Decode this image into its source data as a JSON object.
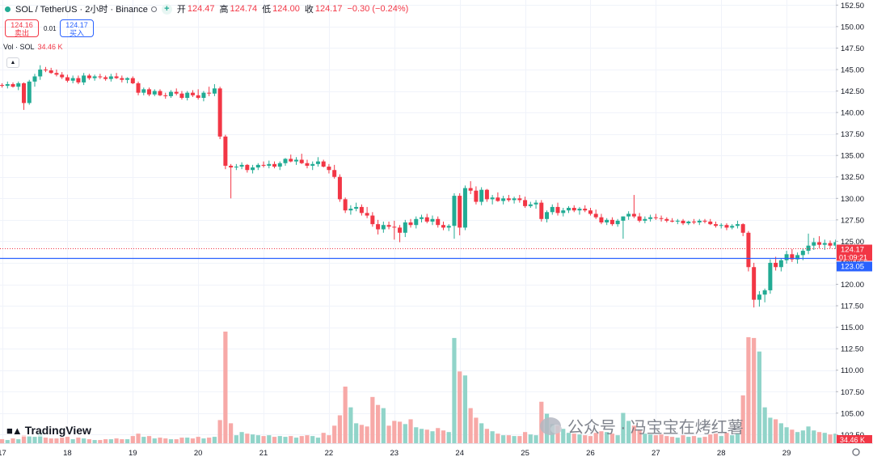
{
  "header": {
    "symbol": "SOL / TetherUS · 2小时 · Binance",
    "open_label": "开",
    "open": "124.47",
    "high_label": "高",
    "high": "124.74",
    "low_label": "低",
    "low": "124.00",
    "close_label": "收",
    "close": "124.17",
    "change": "−0.30 (−0.24%)"
  },
  "trade": {
    "sell_price": "124.16",
    "sell_label": "卖出",
    "spread": "0.01",
    "buy_price": "124.17",
    "buy_label": "买入"
  },
  "volume_legend": {
    "label": "Vol · SOL",
    "value": "34.46 K"
  },
  "logo_text": "TradingView",
  "watermark": "公众号 · 冯宝宝在烤红薯",
  "colors": {
    "up": "#22ab94",
    "down": "#f23645",
    "up_vol": "#91d4c9",
    "down_vol": "#f7a9a7",
    "line": "#2962ff"
  },
  "chart_data": {
    "type": "candlestick",
    "pair": "SOL / TetherUS",
    "timeframe": "2小时",
    "price_axis": {
      "ticks": [
        "152.50",
        "150.00",
        "147.50",
        "145.00",
        "142.50",
        "140.00",
        "137.50",
        "135.00",
        "132.50",
        "130.00",
        "127.50",
        "125.00",
        "122.50",
        "120.00",
        "117.50",
        "115.00",
        "112.50",
        "110.00",
        "107.50",
        "105.00",
        "102.50"
      ],
      "range": [
        101.5,
        153.0
      ]
    },
    "date_axis": {
      "ticks": [
        "17",
        "18",
        "19",
        "20",
        "21",
        "22",
        "23",
        "24",
        "25",
        "26",
        "27",
        "28",
        "29"
      ],
      "bars_per_day": 12
    },
    "current_price": {
      "value": "124.17",
      "countdown": "01:09:21"
    },
    "horizontal_line": {
      "value": "123.05"
    },
    "volume_last": "34.46 K",
    "candles": [
      [
        143.2,
        143.4,
        142.9,
        143.1,
        5
      ],
      [
        143.1,
        143.6,
        142.8,
        143.3,
        4
      ],
      [
        143.3,
        143.5,
        142.9,
        143.0,
        6
      ],
      [
        143.0,
        143.6,
        142.6,
        143.4,
        5
      ],
      [
        143.4,
        143.5,
        140.3,
        141.1,
        10
      ],
      [
        141.1,
        143.8,
        140.9,
        143.6,
        9
      ],
      [
        143.6,
        144.5,
        143.0,
        144.2,
        8
      ],
      [
        144.2,
        145.5,
        143.8,
        145.0,
        14
      ],
      [
        145.0,
        145.3,
        144.7,
        144.9,
        7
      ],
      [
        144.9,
        145.2,
        144.5,
        144.6,
        6
      ],
      [
        144.6,
        145.0,
        144.2,
        144.4,
        6
      ],
      [
        144.4,
        144.7,
        143.9,
        144.1,
        7
      ],
      [
        144.1,
        144.4,
        143.5,
        143.7,
        8
      ],
      [
        143.7,
        144.3,
        143.4,
        144.0,
        5
      ],
      [
        144.0,
        144.3,
        143.3,
        143.5,
        7
      ],
      [
        143.5,
        144.6,
        143.2,
        144.3,
        6
      ],
      [
        144.3,
        144.5,
        143.8,
        144.0,
        5
      ],
      [
        144.0,
        144.4,
        143.7,
        144.2,
        4
      ],
      [
        144.2,
        144.5,
        143.9,
        144.1,
        4
      ],
      [
        144.1,
        144.3,
        143.7,
        143.9,
        5
      ],
      [
        143.9,
        144.5,
        143.6,
        144.2,
        5
      ],
      [
        144.2,
        144.6,
        143.9,
        144.0,
        6
      ],
      [
        144.0,
        144.3,
        143.5,
        143.8,
        5
      ],
      [
        143.8,
        144.1,
        143.4,
        144.0,
        5
      ],
      [
        144.0,
        144.2,
        143.3,
        143.4,
        9
      ],
      [
        143.4,
        143.6,
        142.0,
        142.3,
        12
      ],
      [
        142.3,
        142.9,
        142.0,
        142.7,
        8
      ],
      [
        142.7,
        142.9,
        141.9,
        142.1,
        9
      ],
      [
        142.1,
        142.7,
        141.9,
        142.5,
        6
      ],
      [
        142.5,
        142.7,
        141.9,
        142.0,
        7
      ],
      [
        142.0,
        142.3,
        141.6,
        141.9,
        6
      ],
      [
        141.9,
        142.6,
        141.7,
        142.4,
        5
      ],
      [
        142.4,
        142.8,
        142.0,
        142.2,
        5
      ],
      [
        142.2,
        142.5,
        141.5,
        141.7,
        7
      ],
      [
        141.7,
        142.5,
        141.4,
        142.3,
        7
      ],
      [
        142.3,
        142.6,
        141.8,
        142.0,
        6
      ],
      [
        142.0,
        142.7,
        141.5,
        141.7,
        8
      ],
      [
        141.7,
        142.5,
        141.3,
        142.3,
        6
      ],
      [
        142.3,
        143.0,
        141.9,
        142.2,
        7
      ],
      [
        142.2,
        143.3,
        141.9,
        142.8,
        8
      ],
      [
        142.8,
        143.0,
        136.9,
        137.2,
        29
      ],
      [
        137.2,
        137.4,
        133.4,
        133.8,
        140
      ],
      [
        133.8,
        134.0,
        130.0,
        133.6,
        25
      ],
      [
        133.6,
        134.0,
        133.3,
        133.7,
        10
      ],
      [
        133.7,
        134.2,
        133.4,
        133.9,
        14
      ],
      [
        133.9,
        134.0,
        133.0,
        133.3,
        12
      ],
      [
        133.3,
        133.9,
        132.9,
        133.6,
        11
      ],
      [
        133.6,
        134.1,
        133.3,
        133.9,
        10
      ],
      [
        133.9,
        134.3,
        133.6,
        133.8,
        9
      ],
      [
        133.8,
        134.4,
        133.5,
        134.0,
        10
      ],
      [
        134.0,
        134.3,
        133.5,
        133.7,
        8
      ],
      [
        133.7,
        134.3,
        133.3,
        134.1,
        9
      ],
      [
        134.1,
        134.7,
        133.8,
        134.6,
        8
      ],
      [
        134.6,
        135.1,
        134.2,
        134.3,
        9
      ],
      [
        134.3,
        134.8,
        133.9,
        134.5,
        7
      ],
      [
        134.5,
        135.2,
        134.0,
        134.1,
        9
      ],
      [
        134.1,
        134.5,
        133.5,
        133.8,
        10
      ],
      [
        133.8,
        134.3,
        133.3,
        134.0,
        9
      ],
      [
        134.0,
        134.8,
        133.7,
        134.3,
        7
      ],
      [
        134.3,
        134.5,
        133.6,
        133.7,
        13
      ],
      [
        133.7,
        134.0,
        132.9,
        133.3,
        10
      ],
      [
        133.3,
        133.9,
        132.3,
        132.5,
        22
      ],
      [
        132.5,
        132.8,
        129.6,
        129.9,
        35
      ],
      [
        129.9,
        130.1,
        128.3,
        128.6,
        71
      ],
      [
        128.6,
        129.2,
        128.1,
        128.8,
        45
      ],
      [
        128.8,
        129.5,
        128.5,
        129.0,
        25
      ],
      [
        129.0,
        129.3,
        128.0,
        128.3,
        23
      ],
      [
        128.3,
        129.0,
        127.7,
        128.0,
        21
      ],
      [
        128.0,
        128.4,
        126.7,
        127.0,
        58
      ],
      [
        127.0,
        127.5,
        125.8,
        126.4,
        48
      ],
      [
        126.4,
        127.3,
        126.0,
        126.9,
        44
      ],
      [
        126.9,
        127.3,
        126.4,
        126.7,
        22
      ],
      [
        126.7,
        127.4,
        125.2,
        126.6,
        28
      ],
      [
        126.6,
        126.9,
        124.9,
        126.0,
        27
      ],
      [
        126.0,
        127.5,
        125.5,
        127.2,
        24
      ],
      [
        127.2,
        127.6,
        126.6,
        126.9,
        30
      ],
      [
        126.9,
        127.9,
        126.5,
        127.6,
        20
      ],
      [
        127.6,
        128.1,
        127.2,
        127.8,
        18
      ],
      [
        127.8,
        128.2,
        127.1,
        127.3,
        17
      ],
      [
        127.3,
        128.0,
        126.9,
        127.6,
        15
      ],
      [
        127.6,
        127.9,
        126.6,
        126.9,
        19
      ],
      [
        126.9,
        127.3,
        126.3,
        126.6,
        16
      ],
      [
        126.6,
        127.0,
        126.2,
        126.8,
        14
      ],
      [
        126.8,
        130.6,
        125.3,
        130.3,
        132
      ],
      [
        130.3,
        130.6,
        125.7,
        126.6,
        90
      ],
      [
        126.6,
        131.5,
        126.3,
        131.2,
        85
      ],
      [
        131.2,
        132.0,
        130.5,
        130.9,
        44
      ],
      [
        130.9,
        131.4,
        129.3,
        129.6,
        32
      ],
      [
        129.6,
        131.3,
        129.2,
        131.0,
        25
      ],
      [
        131.0,
        131.1,
        129.6,
        129.9,
        18
      ],
      [
        129.9,
        130.4,
        129.3,
        130.1,
        15
      ],
      [
        130.1,
        130.7,
        129.6,
        129.7,
        12
      ],
      [
        129.7,
        130.3,
        129.3,
        130.0,
        10
      ],
      [
        130.0,
        130.4,
        129.6,
        129.8,
        10
      ],
      [
        129.8,
        130.2,
        129.4,
        130.0,
        9
      ],
      [
        130.0,
        130.4,
        129.5,
        129.8,
        9
      ],
      [
        129.8,
        130.2,
        128.9,
        129.1,
        14
      ],
      [
        129.1,
        129.6,
        128.9,
        129.3,
        11
      ],
      [
        129.3,
        129.8,
        128.8,
        129.5,
        10
      ],
      [
        129.5,
        129.8,
        127.3,
        127.6,
        52
      ],
      [
        127.6,
        128.6,
        127.2,
        128.4,
        37
      ],
      [
        128.4,
        129.3,
        128.1,
        129.0,
        24
      ],
      [
        129.0,
        129.5,
        128.0,
        128.3,
        22
      ],
      [
        128.3,
        128.9,
        127.9,
        128.6,
        18
      ],
      [
        128.6,
        129.1,
        128.3,
        128.9,
        13
      ],
      [
        128.9,
        129.2,
        128.4,
        128.6,
        12
      ],
      [
        128.6,
        129.0,
        128.1,
        128.8,
        11
      ],
      [
        128.8,
        129.2,
        128.4,
        128.6,
        10
      ],
      [
        128.6,
        128.9,
        128.0,
        128.2,
        9
      ],
      [
        128.2,
        128.7,
        127.6,
        127.8,
        13
      ],
      [
        127.8,
        128.2,
        127.0,
        127.2,
        15
      ],
      [
        127.2,
        127.7,
        126.9,
        127.5,
        14
      ],
      [
        127.5,
        127.8,
        126.8,
        127.0,
        12
      ],
      [
        127.0,
        127.6,
        126.7,
        127.4,
        10
      ],
      [
        127.4,
        127.9,
        125.3,
        127.9,
        38
      ],
      [
        127.9,
        128.5,
        127.5,
        128.2,
        28
      ],
      [
        128.2,
        130.4,
        127.7,
        127.9,
        22
      ],
      [
        127.9,
        128.3,
        127.2,
        127.4,
        16
      ],
      [
        127.4,
        127.9,
        127.1,
        127.6,
        12
      ],
      [
        127.6,
        128.1,
        127.3,
        127.8,
        11
      ],
      [
        127.8,
        128.2,
        127.5,
        127.7,
        10
      ],
      [
        127.7,
        128.0,
        127.3,
        127.6,
        11
      ],
      [
        127.6,
        127.8,
        127.2,
        127.4,
        9
      ],
      [
        127.4,
        127.7,
        127.2,
        127.3,
        8
      ],
      [
        127.3,
        127.6,
        127.0,
        127.4,
        7
      ],
      [
        127.4,
        127.6,
        126.9,
        127.1,
        10
      ],
      [
        127.1,
        127.4,
        126.9,
        127.3,
        8
      ],
      [
        127.3,
        127.6,
        127.0,
        127.2,
        9
      ],
      [
        127.2,
        127.6,
        126.9,
        127.4,
        7
      ],
      [
        127.4,
        127.6,
        127.1,
        127.3,
        8
      ],
      [
        127.3,
        127.6,
        126.9,
        127.0,
        11
      ],
      [
        127.0,
        127.3,
        126.6,
        126.8,
        12
      ],
      [
        126.8,
        127.1,
        126.5,
        126.9,
        9
      ],
      [
        126.9,
        127.1,
        126.3,
        126.6,
        13
      ],
      [
        126.6,
        127.0,
        126.4,
        126.8,
        10
      ],
      [
        126.8,
        127.4,
        126.5,
        127.0,
        12
      ],
      [
        127.0,
        127.1,
        125.6,
        126.0,
        60
      ],
      [
        126.0,
        126.2,
        121.5,
        122.0,
        133
      ],
      [
        122.0,
        122.5,
        117.3,
        118.2,
        132
      ],
      [
        118.2,
        119.2,
        117.4,
        118.8,
        115
      ],
      [
        118.8,
        119.5,
        117.9,
        119.3,
        45
      ],
      [
        119.3,
        122.9,
        118.9,
        122.5,
        32
      ],
      [
        122.5,
        123.2,
        121.6,
        122.0,
        30
      ],
      [
        122.0,
        123.0,
        121.5,
        122.8,
        25
      ],
      [
        122.8,
        123.9,
        122.4,
        123.5,
        20
      ],
      [
        123.5,
        124.1,
        122.6,
        122.9,
        17
      ],
      [
        122.9,
        123.7,
        122.4,
        123.4,
        14
      ],
      [
        123.4,
        124.2,
        122.8,
        123.9,
        16
      ],
      [
        123.9,
        125.9,
        123.5,
        124.5,
        21
      ],
      [
        124.5,
        125.4,
        124.0,
        124.9,
        16
      ],
      [
        124.9,
        125.6,
        124.2,
        124.6,
        14
      ],
      [
        124.6,
        125.2,
        124.0,
        124.8,
        13
      ],
      [
        124.8,
        125.1,
        124.2,
        124.5,
        11
      ],
      [
        124.5,
        125.2,
        124.1,
        124.9,
        12
      ],
      [
        124.9,
        125.4,
        124.3,
        124.6,
        10
      ],
      [
        124.6,
        125.1,
        124.2,
        124.8,
        9
      ],
      [
        124.47,
        124.74,
        124.0,
        124.17,
        5
      ]
    ]
  }
}
